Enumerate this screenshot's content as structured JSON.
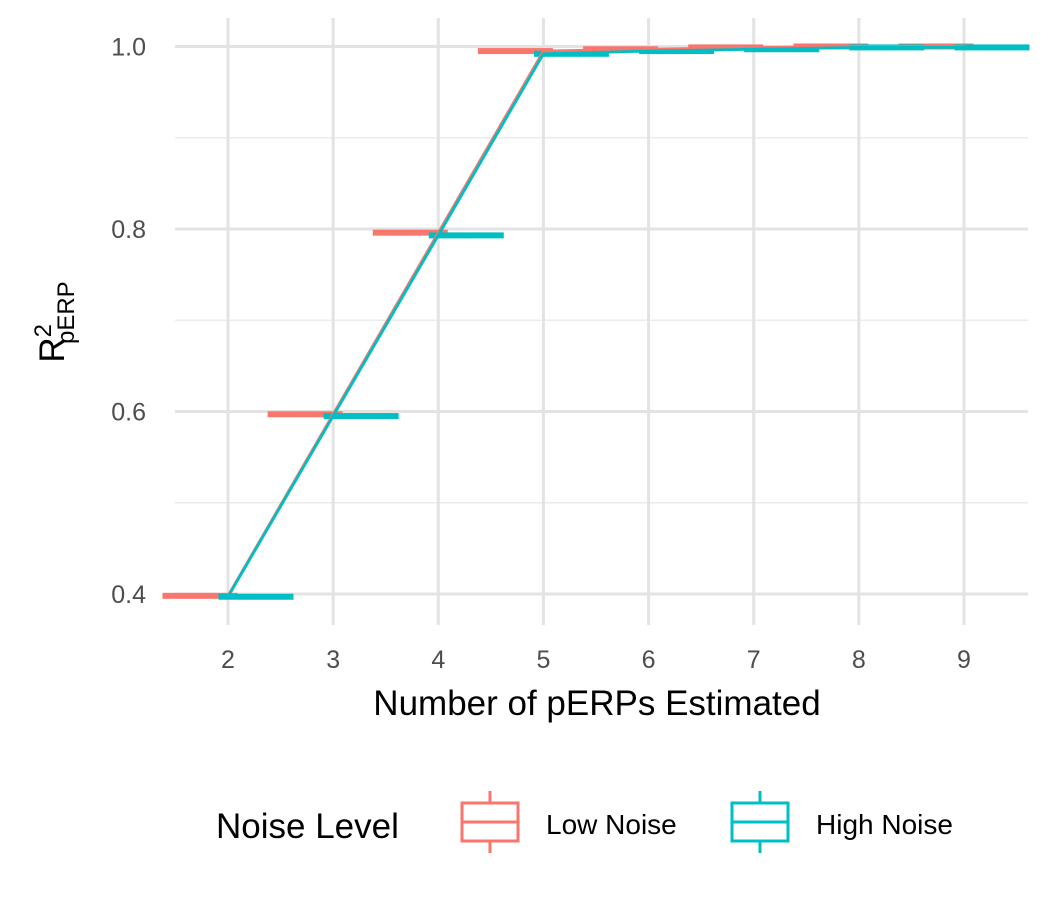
{
  "chart_data": {
    "type": "boxplot-line",
    "xlabel": "Number of pERPs Estimated",
    "ylabel": {
      "base": "R",
      "superscript": "2",
      "subscript": "pERP"
    },
    "categories": [
      "2",
      "3",
      "4",
      "5",
      "6",
      "7",
      "8",
      "9"
    ],
    "x": [
      2,
      3,
      4,
      5,
      6,
      7,
      8,
      9
    ],
    "ylim": [
      0.365,
      1.03
    ],
    "yticks": [
      0.4,
      0.6,
      0.8,
      1.0
    ],
    "ytick_labels": [
      "0.4",
      "0.6",
      "0.8",
      "1.0"
    ],
    "grid": true,
    "legend": {
      "title": "Noise Level",
      "position": "bottom"
    },
    "series": [
      {
        "name": "Low Noise",
        "color": "#F8766D",
        "values": [
          0.398,
          0.597,
          0.796,
          0.995,
          0.997,
          0.999,
          1.0,
          1.0
        ]
      },
      {
        "name": "High Noise",
        "color": "#00BFC4",
        "values": [
          0.397,
          0.595,
          0.793,
          0.992,
          0.995,
          0.997,
          0.999,
          0.999
        ]
      }
    ]
  }
}
